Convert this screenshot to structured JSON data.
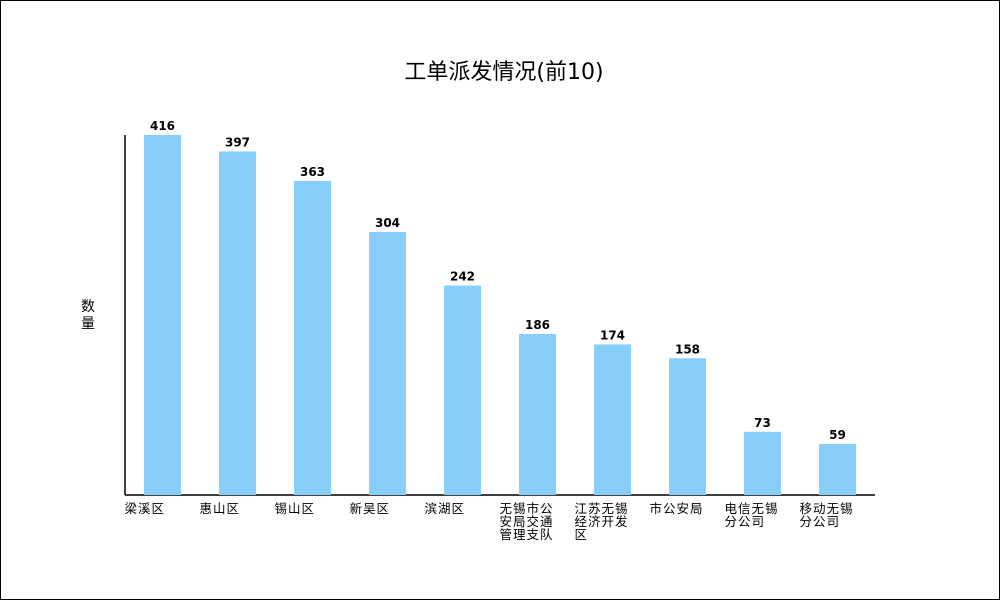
{
  "chart_data": {
    "type": "bar",
    "title": "工单派发情况(前10)",
    "ylabel": "数量",
    "xlabel": "",
    "ylim": [
      0,
      416
    ],
    "grid": false,
    "categories": [
      "梁溪区",
      "惠山区",
      "锡山区",
      "新吴区",
      "滨湖区",
      "无锡市公安局交通管理支队",
      "江苏无锡经济开发区",
      "市公安局",
      "电信无锡分公司",
      "移动无锡分公司"
    ],
    "category_label_lines": [
      [
        "梁溪区"
      ],
      [
        "惠山区"
      ],
      [
        "锡山区"
      ],
      [
        "新吴区"
      ],
      [
        "滨湖区"
      ],
      [
        "无锡市公",
        "安局交通",
        "管理支队"
      ],
      [
        "江苏无锡",
        "经济开发",
        "区"
      ],
      [
        "市公安局"
      ],
      [
        "电信无锡",
        "分公司"
      ],
      [
        "移动无锡",
        "分公司"
      ]
    ],
    "values": [
      416,
      397,
      363,
      304,
      242,
      186,
      174,
      158,
      73,
      59
    ],
    "bar_color": "#87cefa"
  }
}
